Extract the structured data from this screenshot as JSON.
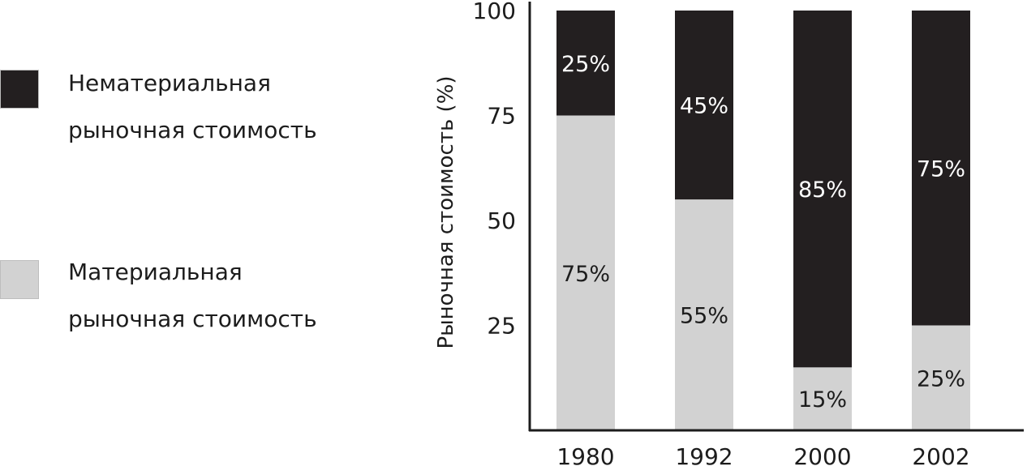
{
  "colors": {
    "intangible": "#231f20",
    "tangible": "#d2d2d2",
    "axis": "#1c1c1c"
  },
  "legend": {
    "intangible_label": "Нематериальная\nрыночная стоимость",
    "tangible_label": "Материальная\nрыночная стоимость"
  },
  "chart_data": {
    "type": "bar",
    "stacked": true,
    "title": "",
    "xlabel": "",
    "ylabel": "Рыночная стоимость (%)",
    "categories": [
      "1980",
      "1992",
      "2000",
      "2002"
    ],
    "series": [
      {
        "name": "Материальная рыночная стоимость",
        "values": [
          75,
          55,
          15,
          25
        ],
        "labels": [
          "75%",
          "55%",
          "15%",
          "25%"
        ]
      },
      {
        "name": "Нематериальная рыночная стоимость",
        "values": [
          25,
          45,
          85,
          75
        ],
        "labels": [
          "25%",
          "45%",
          "85%",
          "75%"
        ]
      }
    ],
    "yticks": [
      25,
      50,
      75,
      100
    ],
    "ytick_labels": [
      "25",
      "50",
      "75",
      "100"
    ],
    "ylim": [
      0,
      100
    ],
    "grid": false,
    "legend_position": "left"
  }
}
